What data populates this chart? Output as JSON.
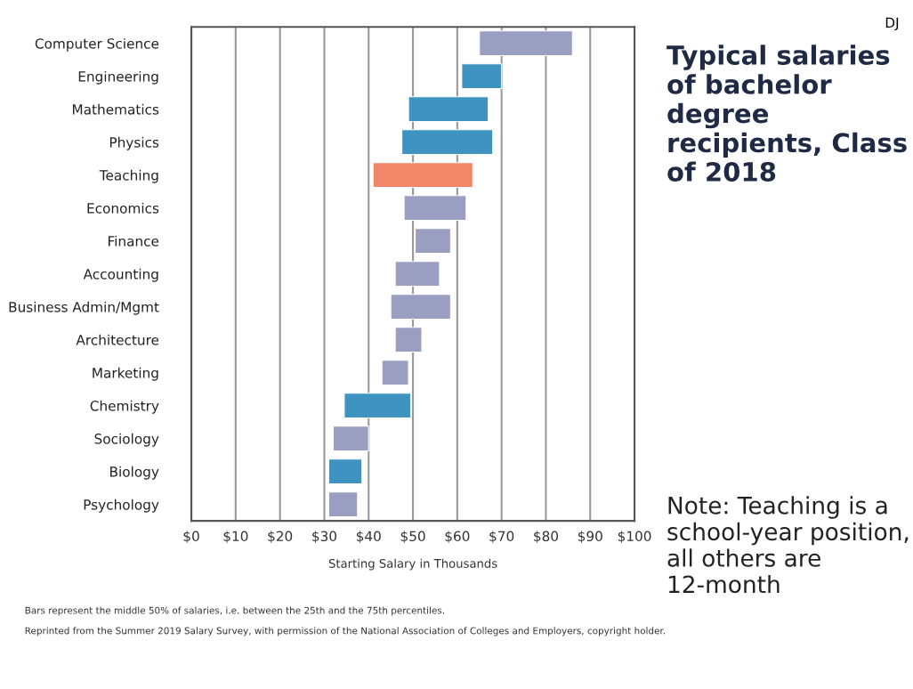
{
  "chart_data": {
    "type": "bar",
    "orientation": "horizontal",
    "title": "Typical salaries of bachelor degree recipients, Class of 2018",
    "xlabel": "Starting Salary in Thousands",
    "categories": [
      "Computer Science",
      "Engineering",
      "Mathematics",
      "Physics",
      "Teaching",
      "Economics",
      "Finance",
      "Accounting",
      "Business Admin/Mgmt",
      "Architecture",
      "Marketing",
      "Chemistry",
      "Sociology",
      "Biology",
      "Psychology"
    ],
    "base": [
      65,
      61,
      49,
      47.5,
      41,
      48,
      50.5,
      46,
      45,
      46,
      43,
      34.5,
      32,
      31,
      31
    ],
    "values": [
      21,
      9,
      18,
      20.5,
      22.5,
      14,
      8,
      10,
      13.5,
      6,
      6,
      15,
      8,
      7.5,
      6.5
    ],
    "colors": [
      "#9a9fc2",
      "#3f93c0",
      "#3f93c0",
      "#3f93c0",
      "#f2876a",
      "#9a9fc2",
      "#9a9fc2",
      "#9a9fc2",
      "#9a9fc2",
      "#9a9fc2",
      "#9a9fc2",
      "#3f93c0",
      "#9a9fc2",
      "#3f93c0",
      "#9a9fc2"
    ],
    "xlim": [
      0,
      100
    ],
    "xticks": [
      {
        "value": 0,
        "label": "$0"
      },
      {
        "value": 10,
        "label": "$10"
      },
      {
        "value": 20,
        "label": "$20"
      },
      {
        "value": 30,
        "label": "$30"
      },
      {
        "value": 40,
        "label": "$40"
      },
      {
        "value": 50,
        "label": "$50"
      },
      {
        "value": 60,
        "label": "$60"
      },
      {
        "value": 70,
        "label": "$70"
      },
      {
        "value": 80,
        "label": "$80"
      },
      {
        "value": 90,
        "label": "$90"
      },
      {
        "value": 100,
        "label": "$100"
      }
    ],
    "grid": "x",
    "annotations": [
      "DJ",
      "Note: Teaching is a school-year position, all others are 12-month",
      "Bars represent the middle 50% of salaries, i.e. between the 25th and the 75th percentiles.",
      "Reprinted from the Summer 2019 Salary Survey, with permission of the National Association of Colleges and Employers, copyright holder."
    ]
  }
}
